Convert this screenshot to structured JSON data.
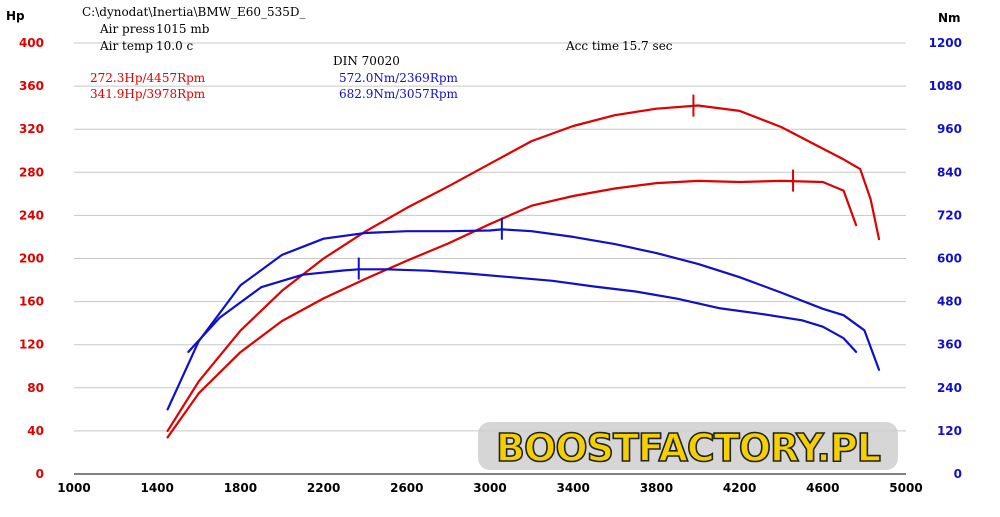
{
  "header": {
    "file_path": "C:\\dynodat\\Inertia\\BMW_E60_535D_",
    "air_press_label": "Air press",
    "air_press_value": "1015 mb",
    "air_temp_label": "Air temp",
    "air_temp_value": "10.0 c",
    "standard": "DIN 70020",
    "acc_time_label": "Acc time",
    "acc_time_value": "15.7 sec"
  },
  "legend": {
    "power_stock": "272.3Hp/4457Rpm",
    "power_tuned": "341.9Hp/3978Rpm",
    "torque_stock": "572.0Nm/2369Rpm",
    "torque_tuned": "682.9Nm/3057Rpm"
  },
  "watermark": "BOOSTFACTORY.PL",
  "colors": {
    "power": "#e00000",
    "torque": "#1010c8",
    "grid": "#c8c8c8"
  },
  "chart_data": {
    "type": "line",
    "xlabel": "",
    "left_axis_unit": "Hp",
    "right_axis_unit": "Nm",
    "xlim": [
      1000,
      5000
    ],
    "ylim_left": [
      0,
      400
    ],
    "ylim_right": [
      0,
      1200
    ],
    "x_ticks": [
      1000,
      1400,
      1800,
      2200,
      2600,
      3000,
      3400,
      3800,
      4200,
      4600,
      5000
    ],
    "y_left_ticks": [
      0,
      40,
      80,
      120,
      160,
      200,
      240,
      280,
      320,
      360,
      400
    ],
    "y_right_ticks": [
      0,
      120,
      240,
      360,
      480,
      600,
      720,
      840,
      960,
      1080,
      1200
    ],
    "grid": "horizontal",
    "series": [
      {
        "axis": "left",
        "color": "#e00000",
        "x": [
          1450,
          1600,
          1800,
          2000,
          2200,
          2400,
          2600,
          2800,
          3000,
          3200,
          3400,
          3600,
          3800,
          4000,
          4200,
          4400,
          4600,
          4700,
          4760
        ],
        "y": [
          34,
          75,
          113,
          142,
          163,
          181,
          198,
          214,
          232,
          249,
          258,
          265,
          270,
          272,
          271,
          272,
          271,
          263,
          231
        ],
        "peak": {
          "x": 4457,
          "y": 272.3
        }
      },
      {
        "axis": "left",
        "color": "#e00000",
        "x": [
          1450,
          1600,
          1800,
          2000,
          2200,
          2400,
          2600,
          2800,
          3000,
          3200,
          3400,
          3600,
          3800,
          4000,
          4200,
          4400,
          4600,
          4700,
          4780,
          4830,
          4870
        ],
        "y": [
          40,
          86,
          133,
          170,
          200,
          225,
          247,
          267,
          288,
          309,
          323,
          333,
          339,
          342,
          337,
          322,
          302,
          292,
          283,
          255,
          218
        ],
        "peak": {
          "x": 3978,
          "y": 341.9
        }
      },
      {
        "axis": "right",
        "color": "#1010c8",
        "x": [
          1550,
          1700,
          1900,
          2100,
          2300,
          2369,
          2500,
          2700,
          2900,
          3100,
          3300,
          3500,
          3700,
          3900,
          4100,
          4300,
          4500,
          4600,
          4700,
          4760
        ],
        "y": [
          340,
          435,
          520,
          555,
          567,
          570,
          570,
          566,
          558,
          548,
          538,
          522,
          508,
          488,
          462,
          446,
          428,
          410,
          378,
          340
        ],
        "peak": {
          "x": 2369,
          "y": 572.0
        }
      },
      {
        "axis": "right",
        "color": "#1010c8",
        "x": [
          1450,
          1600,
          1800,
          2000,
          2200,
          2400,
          2600,
          2800,
          3000,
          3057,
          3200,
          3400,
          3600,
          3800,
          4000,
          4200,
          4400,
          4600,
          4700,
          4800,
          4870
        ],
        "y": [
          180,
          370,
          525,
          610,
          655,
          671,
          676,
          676,
          678,
          681,
          676,
          660,
          640,
          615,
          585,
          548,
          505,
          460,
          442,
          400,
          290
        ],
        "peak": {
          "x": 3057,
          "y": 682.9
        }
      }
    ]
  }
}
